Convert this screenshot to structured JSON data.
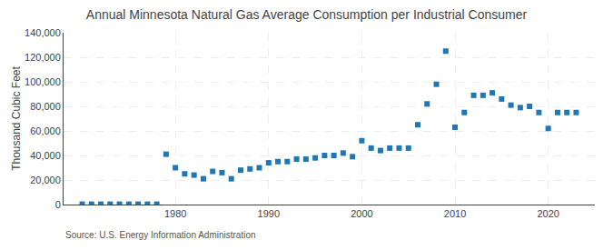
{
  "chart_data": {
    "type": "scatter",
    "title": "Annual Minnesota Natural Gas Average Consumption per Industrial Consumer",
    "ylabel": "Thousand Cubic Feet",
    "annotations": [
      "Source: U.S. Energy Information Administration"
    ],
    "marker": "square",
    "x": [
      1970,
      1971,
      1972,
      1973,
      1974,
      1975,
      1976,
      1977,
      1978,
      1979,
      1980,
      1981,
      1982,
      1983,
      1984,
      1985,
      1986,
      1987,
      1988,
      1989,
      1990,
      1991,
      1992,
      1993,
      1994,
      1995,
      1996,
      1997,
      1998,
      1999,
      2000,
      2001,
      2002,
      2003,
      2004,
      2005,
      2006,
      2007,
      2008,
      2009,
      2010,
      2011,
      2012,
      2013,
      2014,
      2015,
      2016,
      2017,
      2018,
      2019,
      2020,
      2021,
      2022,
      2023
    ],
    "values": [
      300,
      300,
      300,
      300,
      300,
      300,
      300,
      300,
      300,
      41000,
      30000,
      25000,
      24000,
      21000,
      27000,
      26000,
      21000,
      28000,
      29000,
      30000,
      34000,
      35000,
      35000,
      37000,
      37000,
      38000,
      40000,
      40000,
      42000,
      39000,
      52000,
      46000,
      44000,
      46000,
      46000,
      46000,
      65000,
      82000,
      98000,
      125000,
      63000,
      75000,
      89000,
      89000,
      91000,
      86000,
      81000,
      79000,
      80000,
      75000,
      62000,
      75000,
      75000,
      75000
    ],
    "xlim": [
      1968,
      2025
    ],
    "xticks": [
      1980,
      1990,
      2000,
      2010,
      2020
    ],
    "ylim": [
      0,
      140000
    ],
    "yticks": [
      0,
      {
        "value": 20000,
        "label": "20,000"
      },
      {
        "value": 40000,
        "label": "40,000"
      },
      {
        "value": 60000,
        "label": "60,000"
      },
      {
        "value": 80000,
        "label": "80,000"
      },
      {
        "value": 100000,
        "label": "100,000"
      },
      {
        "value": 120000,
        "label": "120,000"
      },
      {
        "value": 140000,
        "label": "140,000"
      }
    ],
    "grid": true
  }
}
